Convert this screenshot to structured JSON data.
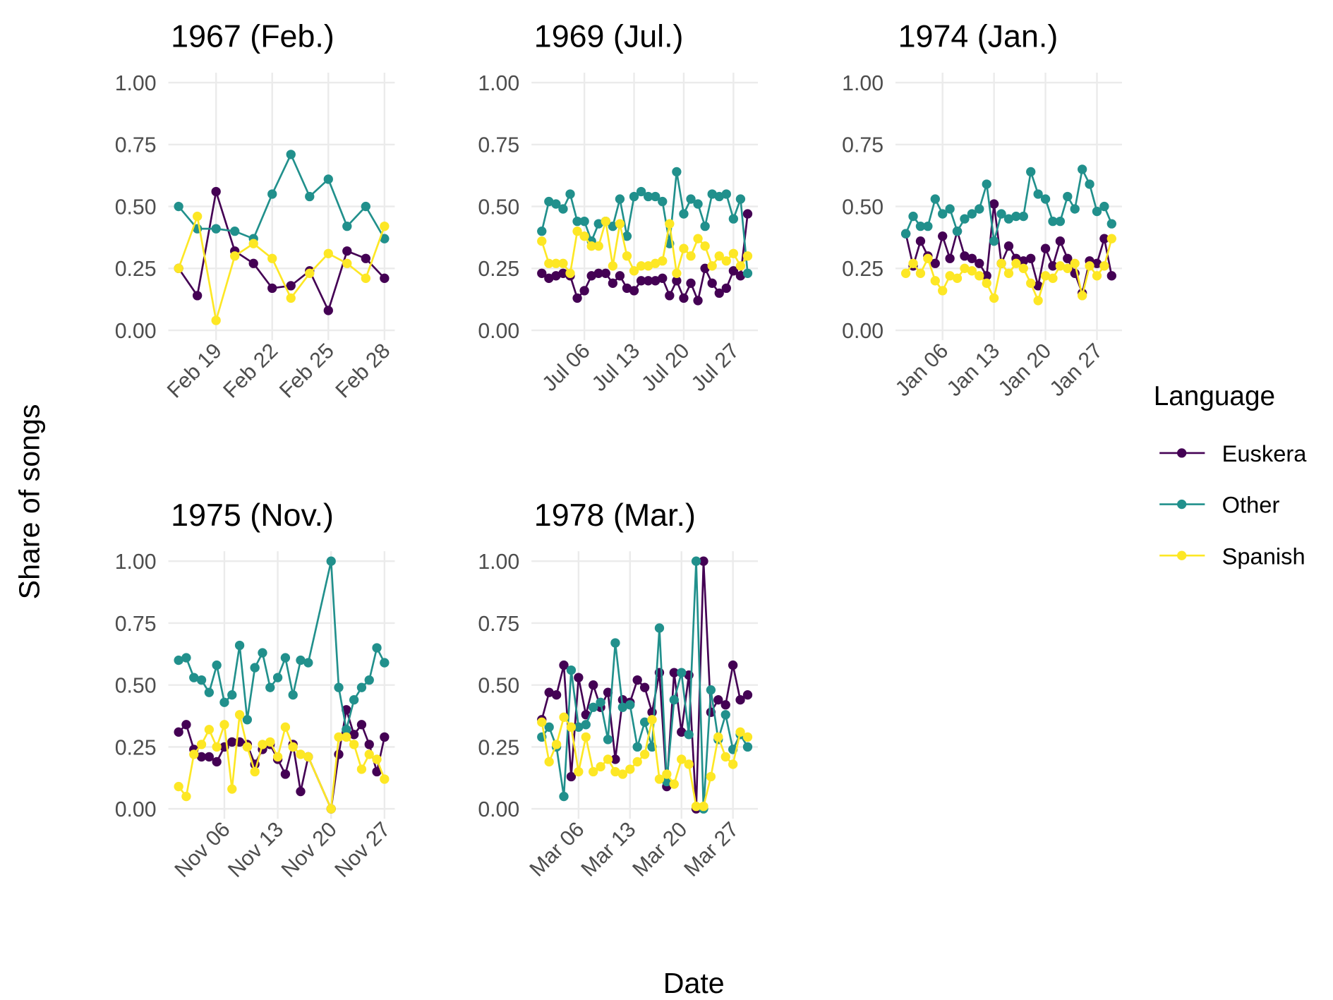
{
  "x_label": "Date",
  "y_label": "Share of songs",
  "legend": {
    "title": "Language"
  },
  "chart_data": [
    {
      "type": "line",
      "title": "1967 (Feb.)",
      "x": [
        "Feb 17",
        "Feb 18",
        "Feb 19",
        "Feb 20",
        "Feb 21",
        "Feb 22",
        "Feb 23",
        "Feb 24",
        "Feb 25",
        "Feb 26",
        "Feb 27",
        "Feb 28"
      ],
      "xlim": [
        "Feb 17",
        "Feb 28"
      ],
      "xticks": [
        "Feb 19",
        "Feb 22",
        "Feb 25",
        "Feb 28"
      ],
      "ylim": [
        0,
        1
      ],
      "yticks": [
        {
          "value": 0,
          "label": "0.00"
        },
        {
          "value": 0.25,
          "label": "0.25"
        },
        {
          "value": 0.5,
          "label": "0.50"
        },
        {
          "value": 0.75,
          "label": "0.75"
        },
        {
          "value": 1,
          "label": "1.00"
        }
      ],
      "grid": true,
      "series": [
        {
          "name": "Euskera",
          "color": "#440154",
          "values": [
            0.25,
            0.14,
            0.56,
            0.32,
            0.27,
            0.17,
            0.18,
            0.24,
            0.08,
            0.32,
            0.29,
            0.21
          ]
        },
        {
          "name": "Other",
          "color": "#21908C",
          "values": [
            0.5,
            0.41,
            0.41,
            0.4,
            0.37,
            0.55,
            0.71,
            0.54,
            0.61,
            0.42,
            0.5,
            0.37
          ]
        },
        {
          "name": "Spanish",
          "color": "#FDE725",
          "values": [
            0.25,
            0.46,
            0.04,
            0.3,
            0.35,
            0.29,
            0.13,
            0.23,
            0.31,
            0.27,
            0.21,
            0.42
          ]
        }
      ]
    },
    {
      "type": "line",
      "title": "1969 (Jul.)",
      "x": [
        "Jun 30",
        "Jul 1",
        "Jul 2",
        "Jul 3",
        "Jul 4",
        "Jul 5",
        "Jul 6",
        "Jul 7",
        "Jul 8",
        "Jul 9",
        "Jul 10",
        "Jul 11",
        "Jul 12",
        "Jul 13",
        "Jul 14",
        "Jul 15",
        "Jul 16",
        "Jul 17",
        "Jul 18",
        "Jul 19",
        "Jul 20",
        "Jul 21",
        "Jul 22",
        "Jul 23",
        "Jul 24",
        "Jul 25",
        "Jul 26",
        "Jul 27",
        "Jul 28",
        "Jul 29"
      ],
      "xlim": [
        "Jun 30",
        "Jul 29"
      ],
      "xticks": [
        "Jul 06",
        "Jul 13",
        "Jul 20",
        "Jul 27"
      ],
      "ylim": [
        0,
        1
      ],
      "yticks": [
        {
          "value": 0,
          "label": "0.00"
        },
        {
          "value": 0.25,
          "label": "0.25"
        },
        {
          "value": 0.5,
          "label": "0.50"
        },
        {
          "value": 0.75,
          "label": "0.75"
        },
        {
          "value": 1,
          "label": "1.00"
        }
      ],
      "grid": true,
      "series": [
        {
          "name": "Euskera",
          "color": "#440154",
          "values": [
            0.23,
            0.21,
            0.22,
            0.23,
            0.22,
            0.13,
            0.16,
            0.22,
            0.23,
            0.23,
            0.19,
            0.22,
            0.17,
            0.16,
            0.2,
            0.2,
            0.2,
            0.21,
            0.14,
            0.2,
            0.13,
            0.19,
            0.12,
            0.25,
            0.19,
            0.15,
            0.17,
            0.24,
            0.22,
            0.47
          ]
        },
        {
          "name": "Other",
          "color": "#21908C",
          "values": [
            0.4,
            0.52,
            0.51,
            0.49,
            0.55,
            0.44,
            0.44,
            0.36,
            0.43,
            0.44,
            0.42,
            0.53,
            0.38,
            0.54,
            0.56,
            0.54,
            0.54,
            0.52,
            0.35,
            0.64,
            0.47,
            0.53,
            0.51,
            0.42,
            0.55,
            0.54,
            0.55,
            0.45,
            0.53,
            0.23
          ]
        },
        {
          "name": "Spanish",
          "color": "#FDE725",
          "values": [
            0.36,
            0.27,
            0.27,
            0.27,
            0.23,
            0.4,
            0.38,
            0.34,
            0.34,
            0.44,
            0.26,
            0.43,
            0.3,
            0.24,
            0.26,
            0.26,
            0.27,
            0.28,
            0.43,
            0.23,
            0.33,
            0.3,
            0.37,
            0.34,
            0.26,
            0.3,
            0.28,
            0.31,
            0.26,
            0.3
          ]
        }
      ]
    },
    {
      "type": "line",
      "title": "1974 (Jan.)",
      "x": [
        "Jan 1",
        "Jan 2",
        "Jan 3",
        "Jan 4",
        "Jan 5",
        "Jan 6",
        "Jan 7",
        "Jan 8",
        "Jan 9",
        "Jan 10",
        "Jan 11",
        "Jan 12",
        "Jan 13",
        "Jan 14",
        "Jan 15",
        "Jan 16",
        "Jan 17",
        "Jan 18",
        "Jan 19",
        "Jan 20",
        "Jan 21",
        "Jan 22",
        "Jan 23",
        "Jan 24",
        "Jan 25",
        "Jan 26",
        "Jan 27",
        "Jan 28",
        "Jan 29"
      ],
      "xlim": [
        "Jan 1",
        "Jan 29"
      ],
      "xticks": [
        "Jan 06",
        "Jan 13",
        "Jan 20",
        "Jan 27"
      ],
      "ylim": [
        0,
        1
      ],
      "yticks": [
        {
          "value": 0,
          "label": "0.00"
        },
        {
          "value": 0.25,
          "label": "0.25"
        },
        {
          "value": 0.5,
          "label": "0.50"
        },
        {
          "value": 0.75,
          "label": "0.75"
        },
        {
          "value": 1,
          "label": "1.00"
        }
      ],
      "grid": true,
      "series": [
        {
          "name": "Euskera",
          "color": "#440154",
          "values": [
            0.39,
            0.26,
            0.36,
            0.3,
            0.27,
            0.38,
            0.29,
            0.4,
            0.3,
            0.29,
            0.27,
            0.22,
            0.51,
            0.27,
            0.34,
            0.29,
            0.28,
            0.29,
            0.18,
            0.33,
            0.26,
            0.36,
            0.29,
            0.23,
            0.15,
            0.28,
            0.27,
            0.37,
            0.22
          ]
        },
        {
          "name": "Other",
          "color": "#21908C",
          "values": [
            0.39,
            0.46,
            0.42,
            0.42,
            0.53,
            0.47,
            0.49,
            0.4,
            0.45,
            0.47,
            0.49,
            0.59,
            0.36,
            0.47,
            0.45,
            0.46,
            0.46,
            0.64,
            0.55,
            0.53,
            0.44,
            0.44,
            0.54,
            0.49,
            0.65,
            0.59,
            0.48,
            0.5,
            0.43
          ]
        },
        {
          "name": "Spanish",
          "color": "#FDE725",
          "values": [
            0.23,
            0.27,
            0.23,
            0.29,
            0.2,
            0.16,
            0.22,
            0.21,
            0.25,
            0.24,
            0.22,
            0.19,
            0.13,
            0.27,
            0.23,
            0.27,
            0.25,
            0.19,
            0.12,
            0.22,
            0.21,
            0.26,
            0.25,
            0.27,
            0.14,
            0.26,
            0.22,
            0.26,
            0.37
          ]
        }
      ]
    },
    {
      "type": "line",
      "title": "1975 (Nov.)",
      "x": [
        "Oct 31",
        "Nov 1",
        "Nov 2",
        "Nov 3",
        "Nov 4",
        "Nov 5",
        "Nov 6",
        "Nov 7",
        "Nov 8",
        "Nov 9",
        "Nov 10",
        "Nov 11",
        "Nov 12",
        "Nov 13",
        "Nov 14",
        "Nov 15",
        "Nov 16",
        "Nov 17",
        "Nov 20",
        "Nov 21",
        "Nov 22",
        "Nov 23",
        "Nov 24",
        "Nov 25",
        "Nov 26",
        "Nov 27"
      ],
      "xlim": [
        "Oct 31",
        "Nov 27"
      ],
      "xticks": [
        "Nov 06",
        "Nov 13",
        "Nov 20",
        "Nov 27"
      ],
      "ylim": [
        0,
        1
      ],
      "yticks": [
        {
          "value": 0,
          "label": "0.00"
        },
        {
          "value": 0.25,
          "label": "0.25"
        },
        {
          "value": 0.5,
          "label": "0.50"
        },
        {
          "value": 0.75,
          "label": "0.75"
        },
        {
          "value": 1,
          "label": "1.00"
        }
      ],
      "grid": true,
      "series": [
        {
          "name": "Euskera",
          "color": "#440154",
          "values": [
            0.31,
            0.34,
            0.24,
            0.21,
            0.21,
            0.19,
            0.25,
            0.27,
            0.27,
            0.26,
            0.18,
            0.24,
            0.26,
            0.2,
            0.14,
            0.26,
            0.07,
            0.21,
            0.0,
            0.22,
            0.4,
            0.3,
            0.34,
            0.26,
            0.15,
            0.29
          ]
        },
        {
          "name": "Other",
          "color": "#21908C",
          "values": [
            0.6,
            0.61,
            0.53,
            0.52,
            0.47,
            0.58,
            0.43,
            0.46,
            0.66,
            0.36,
            0.57,
            0.63,
            0.49,
            0.53,
            0.61,
            0.46,
            0.6,
            0.59,
            1.0,
            0.49,
            0.32,
            0.44,
            0.49,
            0.52,
            0.65,
            0.59
          ]
        },
        {
          "name": "Spanish",
          "color": "#FDE725",
          "values": [
            0.09,
            0.05,
            0.22,
            0.26,
            0.32,
            0.25,
            0.34,
            0.08,
            0.38,
            0.25,
            0.15,
            0.26,
            0.27,
            0.21,
            0.33,
            0.25,
            0.22,
            0.21,
            0.0,
            0.29,
            0.29,
            0.26,
            0.16,
            0.22,
            0.2,
            0.12
          ]
        }
      ]
    },
    {
      "type": "line",
      "title": "1978 (Mar.)",
      "x": [
        "Mar 1",
        "Mar 2",
        "Mar 3",
        "Mar 4",
        "Mar 5",
        "Mar 6",
        "Mar 7",
        "Mar 8",
        "Mar 9",
        "Mar 10",
        "Mar 11",
        "Mar 12",
        "Mar 13",
        "Mar 14",
        "Mar 15",
        "Mar 16",
        "Mar 17",
        "Mar 18",
        "Mar 19",
        "Mar 20",
        "Mar 21",
        "Mar 22",
        "Mar 23",
        "Mar 24",
        "Mar 25",
        "Mar 26",
        "Mar 27",
        "Mar 28",
        "Mar 29"
      ],
      "xlim": [
        "Mar 1",
        "Mar 29"
      ],
      "xticks": [
        "Mar 06",
        "Mar 13",
        "Mar 20",
        "Mar 27"
      ],
      "ylim": [
        0,
        1
      ],
      "yticks": [
        {
          "value": 0,
          "label": "0.00"
        },
        {
          "value": 0.25,
          "label": "0.25"
        },
        {
          "value": 0.5,
          "label": "0.50"
        },
        {
          "value": 0.75,
          "label": "0.75"
        },
        {
          "value": 1,
          "label": "1.00"
        }
      ],
      "grid": true,
      "series": [
        {
          "name": "Euskera",
          "color": "#440154",
          "values": [
            0.36,
            0.47,
            0.46,
            0.58,
            0.13,
            0.53,
            0.38,
            0.5,
            0.41,
            0.47,
            0.2,
            0.44,
            0.43,
            0.52,
            0.49,
            0.39,
            0.55,
            0.09,
            0.55,
            0.31,
            0.54,
            0.0,
            1.0,
            0.39,
            0.44,
            0.42,
            0.58,
            0.44,
            0.46
          ]
        },
        {
          "name": "Other",
          "color": "#21908C",
          "values": [
            0.29,
            0.33,
            0.25,
            0.05,
            0.56,
            0.33,
            0.34,
            0.41,
            0.43,
            0.28,
            0.67,
            0.41,
            0.42,
            0.25,
            0.35,
            0.25,
            0.73,
            0.11,
            0.44,
            0.55,
            0.3,
            1.0,
            0.0,
            0.48,
            0.28,
            0.38,
            0.24,
            0.3,
            0.25
          ]
        },
        {
          "name": "Spanish",
          "color": "#FDE725",
          "values": [
            0.35,
            0.19,
            0.26,
            0.37,
            0.33,
            0.15,
            0.29,
            0.15,
            0.17,
            0.2,
            0.15,
            0.14,
            0.16,
            0.19,
            0.22,
            0.36,
            0.12,
            0.14,
            0.1,
            0.2,
            0.18,
            0.01,
            0.01,
            0.13,
            0.29,
            0.21,
            0.18,
            0.31,
            0.29
          ]
        }
      ]
    }
  ]
}
